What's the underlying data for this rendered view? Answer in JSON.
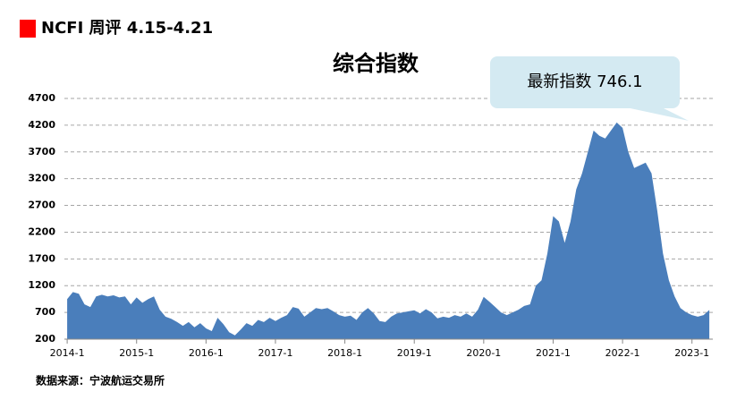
{
  "header": {
    "title": "NCFI 周评 4.15-4.21"
  },
  "chart_data": {
    "type": "area",
    "title": "综合指数",
    "annotation": "最新指数 746.1",
    "source": "数据来源：宁波航运交易所",
    "color": "#4a7ebb",
    "grid": true,
    "x": [
      2014,
      2014.083,
      2014.167,
      2014.25,
      2014.333,
      2014.417,
      2014.5,
      2014.583,
      2014.667,
      2014.75,
      2014.833,
      2014.917,
      2015,
      2015.083,
      2015.167,
      2015.25,
      2015.333,
      2015.417,
      2015.5,
      2015.583,
      2015.667,
      2015.75,
      2015.833,
      2015.917,
      2016,
      2016.083,
      2016.167,
      2016.25,
      2016.333,
      2016.417,
      2016.5,
      2016.583,
      2016.667,
      2016.75,
      2016.833,
      2016.917,
      2017,
      2017.083,
      2017.167,
      2017.25,
      2017.333,
      2017.417,
      2017.5,
      2017.583,
      2017.667,
      2017.75,
      2017.833,
      2017.917,
      2018,
      2018.083,
      2018.167,
      2018.25,
      2018.333,
      2018.417,
      2018.5,
      2018.583,
      2018.667,
      2018.75,
      2018.833,
      2018.917,
      2019,
      2019.083,
      2019.167,
      2019.25,
      2019.333,
      2019.417,
      2019.5,
      2019.583,
      2019.667,
      2019.75,
      2019.833,
      2019.917,
      2020,
      2020.083,
      2020.167,
      2020.25,
      2020.333,
      2020.417,
      2020.5,
      2020.583,
      2020.667,
      2020.75,
      2020.833,
      2020.917,
      2021,
      2021.083,
      2021.167,
      2021.25,
      2021.333,
      2021.417,
      2021.5,
      2021.583,
      2021.667,
      2021.75,
      2021.833,
      2021.917,
      2022,
      2022.083,
      2022.167,
      2022.25,
      2022.333,
      2022.417,
      2022.5,
      2022.583,
      2022.667,
      2022.75,
      2022.833,
      2022.917,
      2023,
      2023.083,
      2023.167,
      2023.25
    ],
    "values": [
      950,
      1080,
      1050,
      850,
      800,
      1000,
      1030,
      1000,
      1020,
      980,
      1000,
      850,
      980,
      880,
      950,
      1000,
      750,
      620,
      580,
      520,
      450,
      520,
      420,
      500,
      400,
      350,
      600,
      480,
      330,
      270,
      380,
      500,
      450,
      560,
      520,
      600,
      540,
      600,
      650,
      800,
      770,
      620,
      700,
      780,
      760,
      780,
      720,
      650,
      620,
      640,
      560,
      700,
      780,
      680,
      540,
      520,
      620,
      680,
      700,
      720,
      740,
      680,
      760,
      700,
      590,
      620,
      600,
      650,
      620,
      680,
      620,
      750,
      990,
      900,
      800,
      700,
      650,
      700,
      750,
      820,
      850,
      1200,
      1300,
      1800,
      2500,
      2400,
      2000,
      2400,
      3000,
      3300,
      3700,
      4100,
      4000,
      3950,
      4100,
      4250,
      4150,
      3700,
      3400,
      3450,
      3500,
      3300,
      2600,
      1800,
      1300,
      1000,
      780,
      700,
      650,
      620,
      650,
      746.1
    ],
    "xlim": [
      2013.96,
      2023.3
    ],
    "xticks": [
      {
        "value": 2014,
        "label": "2014-1"
      },
      {
        "value": 2015,
        "label": "2015-1"
      },
      {
        "value": 2016,
        "label": "2016-1"
      },
      {
        "value": 2017,
        "label": "2017-1"
      },
      {
        "value": 2018,
        "label": "2018-1"
      },
      {
        "value": 2019,
        "label": "2019-1"
      },
      {
        "value": 2020,
        "label": "2020-1"
      },
      {
        "value": 2021,
        "label": "2021-1"
      },
      {
        "value": 2022,
        "label": "2022-1"
      },
      {
        "value": 2023,
        "label": "2023-1"
      }
    ],
    "ylim": [
      200,
      4700
    ],
    "yticks": [
      200,
      700,
      1200,
      1700,
      2200,
      2700,
      3200,
      3700,
      4200,
      4700
    ]
  }
}
